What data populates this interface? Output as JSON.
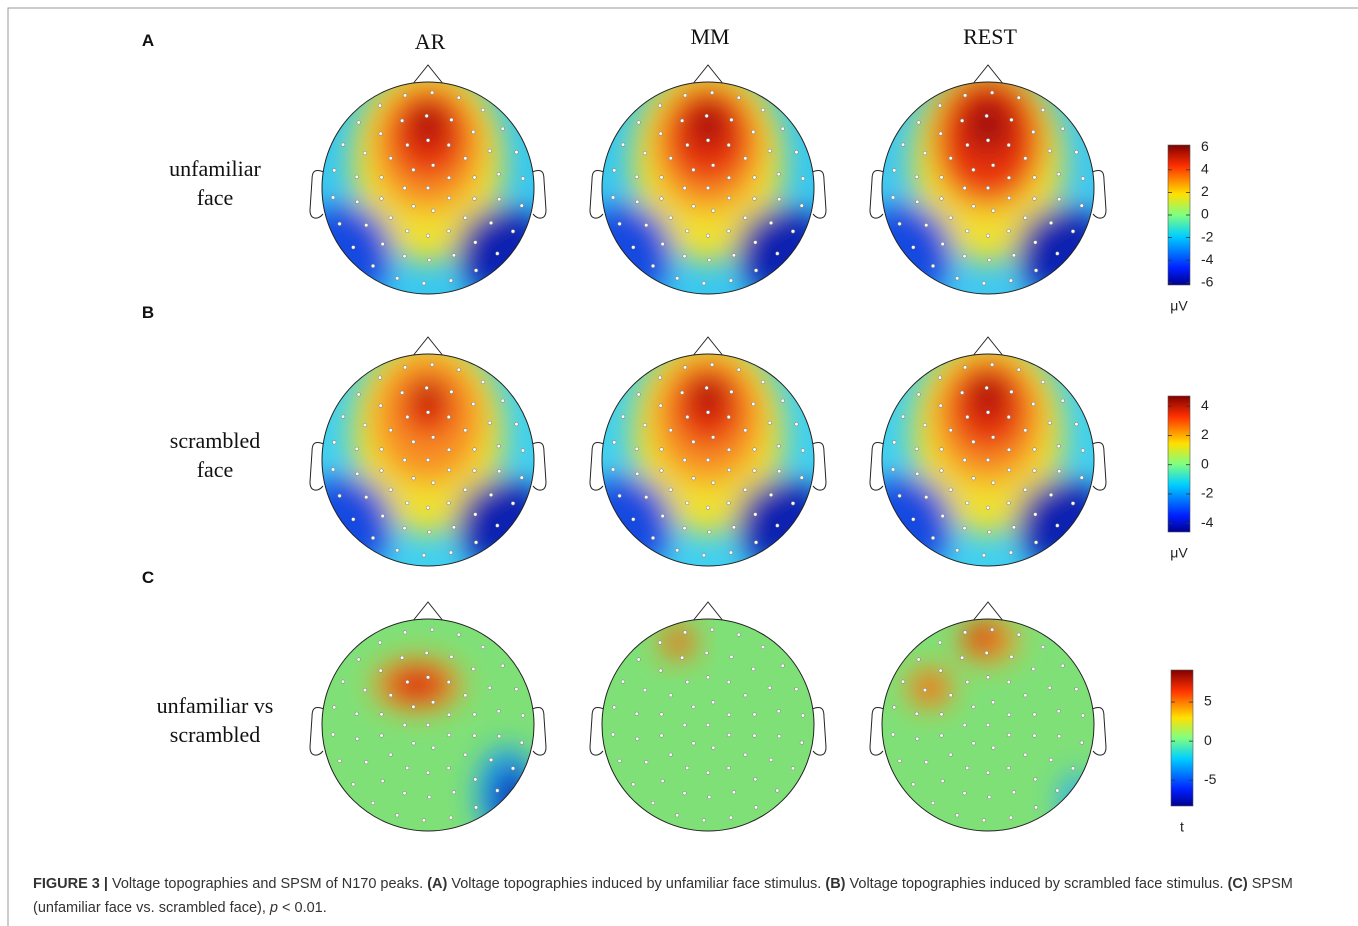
{
  "columns": [
    "AR",
    "MM",
    "REST"
  ],
  "rows": [
    {
      "panel": "A",
      "label": [
        "unfamiliar",
        "face"
      ],
      "colorbar": {
        "ticks": [
          6,
          4,
          2,
          0,
          -2,
          -4,
          -6
        ],
        "lim": [
          -6.2,
          6.2
        ],
        "unit": "μV"
      }
    },
    {
      "panel": "B",
      "label": [
        "scrambled",
        "face"
      ],
      "colorbar": {
        "ticks": [
          4,
          2,
          0,
          -2,
          -4
        ],
        "lim": [
          -4.6,
          4.7
        ],
        "unit": "μV"
      }
    },
    {
      "panel": "C",
      "label": [
        "unfamiliar vs",
        "scrambled"
      ],
      "colorbar": {
        "ticks": [
          5,
          0,
          -5
        ],
        "lim": [
          -8.3,
          9.1
        ],
        "unit": "t"
      }
    }
  ],
  "caption": [
    {
      "text": "FIGURE 3 |",
      "bold": true
    },
    {
      "text": " Voltage topographies and SPSM of N170 peaks. "
    },
    {
      "text": "(A)",
      "bold": true
    },
    {
      "text": " Voltage topographies induced by unfamiliar face stimulus. "
    },
    {
      "text": "(B)",
      "bold": true
    },
    {
      "text": " Voltage topographies induced by scrambled face stimulus. "
    },
    {
      "text": "(C)",
      "bold": true
    },
    {
      "text": " SPSM (unfamiliar face vs. scrambled face), "
    },
    {
      "text": "p",
      "italic": true
    },
    {
      "text": " < 0.01."
    }
  ]
}
